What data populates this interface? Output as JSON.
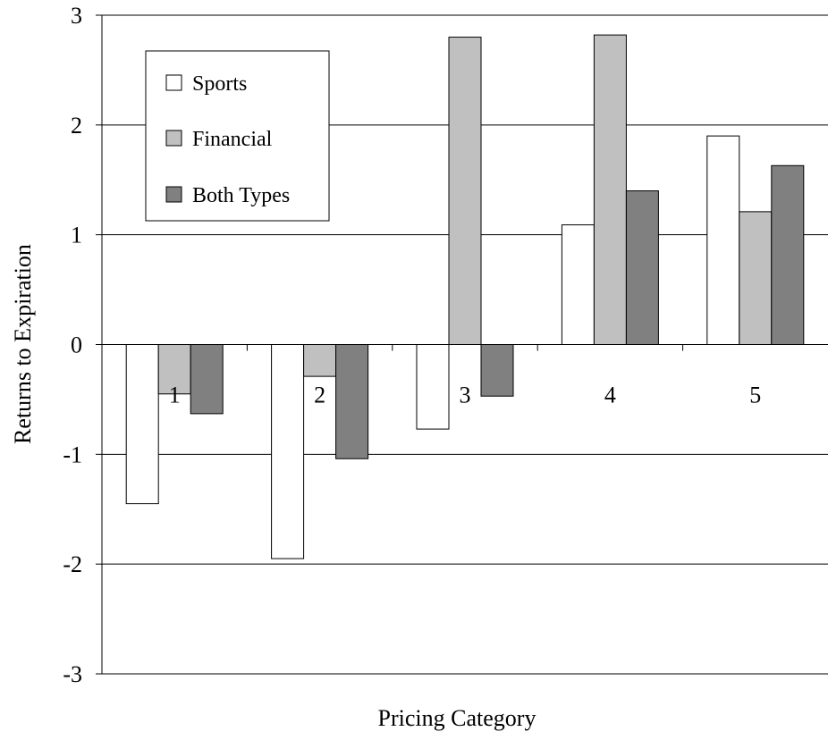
{
  "chart_data": {
    "type": "bar",
    "xlabel": "Pricing Category",
    "ylabel": "Returns to Expiration",
    "ylim": [
      -3,
      3
    ],
    "yticks": [
      "3",
      "2",
      "1",
      "0",
      "-1",
      "-2",
      "-3"
    ],
    "categories": [
      "1",
      "2",
      "3",
      "4",
      "5"
    ],
    "grid": true,
    "legend_position": "top-left",
    "series": [
      {
        "name": "Sports",
        "color": "#ffffff",
        "values": [
          -1.45,
          -1.95,
          -0.77,
          1.09,
          1.9
        ]
      },
      {
        "name": "Financial",
        "color": "#c0c0c0",
        "values": [
          -0.45,
          -0.29,
          2.8,
          2.82,
          1.21
        ]
      },
      {
        "name": "Both Types",
        "color": "#808080",
        "values": [
          -0.63,
          -1.04,
          -0.47,
          1.4,
          1.63
        ]
      }
    ]
  }
}
